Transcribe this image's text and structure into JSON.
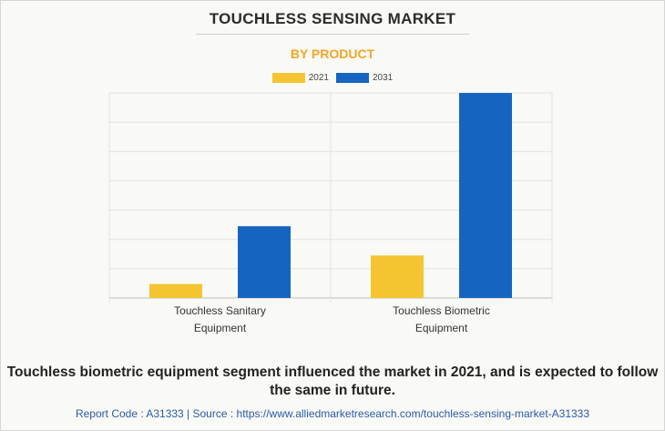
{
  "header": {
    "title": "TOUCHLESS SENSING MARKET",
    "subtitle": "BY PRODUCT"
  },
  "colors": {
    "subtitle": "#f5a623",
    "grid": "#e2e2e2",
    "axis": "#bdbdbd"
  },
  "chart_data": {
    "type": "bar",
    "title": "TOUCHLESS SENSING MARKET",
    "subtitle": "BY PRODUCT",
    "categories": [
      [
        "Touchless Sanitary",
        "Equipment"
      ],
      [
        "Touchless Biometric",
        "Equipment"
      ]
    ],
    "series": [
      {
        "name": "2021",
        "color": "#f5c531",
        "values": [
          0.95,
          2.9
        ]
      },
      {
        "name": "2031",
        "color": "#1565c0",
        "values": [
          4.9,
          14.0
        ]
      }
    ],
    "ylim": [
      0,
      14
    ],
    "grid_lines": 7,
    "grid": true,
    "legend_position": "top-center",
    "xlabel": "",
    "ylabel": ""
  },
  "caption": "Touchless biometric equipment segment influenced the market in 2021, and is expected to follow the same in future.",
  "footer": "Report Code : A31333  |  Source : https://www.alliedmarketresearch.com/touchless-sensing-market-A31333"
}
